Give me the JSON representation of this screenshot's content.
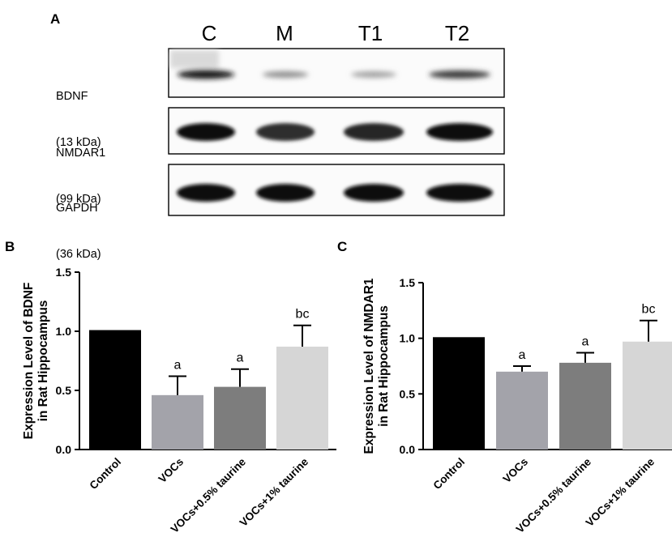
{
  "panelA": {
    "letter": "A",
    "lanes": [
      "C",
      "M",
      "T1",
      "T2"
    ],
    "blots": [
      {
        "name": "BDNF",
        "size": "(13 kDa)",
        "intensity": [
          0.95,
          0.45,
          0.38,
          0.8
        ]
      },
      {
        "name": "NMDAR1",
        "size": "(99 kDa)",
        "intensity": [
          1.0,
          0.85,
          0.88,
          1.0
        ]
      },
      {
        "name": "GAPDH",
        "size": "(36 kDa)",
        "intensity": [
          1.0,
          1.0,
          1.0,
          1.0
        ]
      }
    ]
  },
  "chart_data": [
    {
      "type": "bar",
      "panel": "B",
      "categories": [
        "Control",
        "VOCs",
        "VOCs+0.5% taurine",
        "VOCs+1% taurine"
      ],
      "values": [
        1.01,
        0.46,
        0.53,
        0.87
      ],
      "errors": [
        0,
        0.16,
        0.15,
        0.18
      ],
      "annotations": [
        "",
        "a",
        "a",
        "bc"
      ],
      "colors": [
        "#000000",
        "#a3a3aa",
        "#7d7d7d",
        "#d6d6d6"
      ],
      "title": "",
      "xlabel": "",
      "ylabel": "Expression Level of BDNF\nin Rat Hippocampus",
      "ylim": [
        0,
        1.5
      ],
      "yticks": [
        "0.0",
        "0.5",
        "1.0",
        "1.5"
      ]
    },
    {
      "type": "bar",
      "panel": "C",
      "categories": [
        "Control",
        "VOCs",
        "VOCs+0.5% taurine",
        "VOCs+1% taurine"
      ],
      "values": [
        1.01,
        0.7,
        0.78,
        0.97
      ],
      "errors": [
        0,
        0.05,
        0.09,
        0.19
      ],
      "annotations": [
        "",
        "a",
        "a",
        "bc"
      ],
      "colors": [
        "#000000",
        "#a3a3aa",
        "#7d7d7d",
        "#d6d6d6"
      ],
      "title": "",
      "xlabel": "",
      "ylabel": "Expression Level of NMDAR1\nin Rat Hippocampus",
      "ylim": [
        0,
        1.5
      ],
      "yticks": [
        "0.0",
        "0.5",
        "1.0",
        "1.5"
      ]
    }
  ]
}
